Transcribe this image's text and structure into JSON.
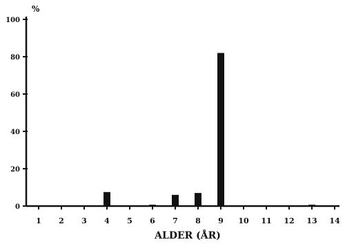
{
  "chart_data": {
    "type": "bar",
    "title": "",
    "ylabel": "%",
    "xlabel": "ALDER (ÅR)",
    "categories": [
      "1",
      "2",
      "3",
      "4",
      "5",
      "6",
      "7",
      "8",
      "9",
      "10",
      "11",
      "12",
      "13",
      "14"
    ],
    "values": [
      0,
      0,
      0,
      7.5,
      0,
      0.5,
      6,
      7,
      82,
      0,
      0,
      0,
      0.3,
      0
    ],
    "ylim": [
      0,
      100
    ],
    "yticks": [
      "0",
      "20",
      "40",
      "60",
      "80",
      "100"
    ],
    "grid": false,
    "legend": "none",
    "bar_color": "#111111"
  }
}
